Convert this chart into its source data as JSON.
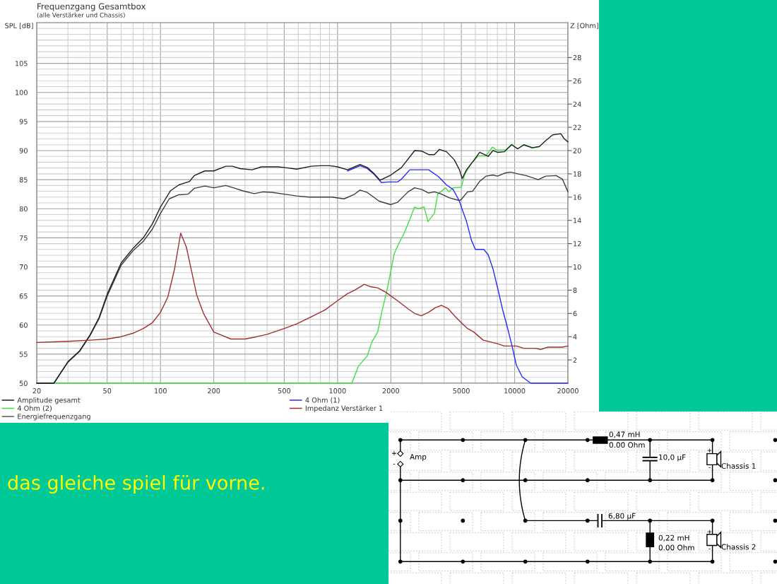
{
  "chart_data": [
    {
      "type": "line",
      "title": "Frequenzgang Gesamtbox",
      "subtitle": "(alle Verstärker und Chassis)",
      "ylabel": "SPL [dB]",
      "y2label": "Z [Ohm]",
      "annotations": [
        "das gleiche spiel für vorne."
      ],
      "log": "x",
      "xlim": [
        20,
        20000
      ],
      "xticks": [
        20,
        50,
        100,
        200,
        500,
        1000,
        2000,
        5000,
        10000,
        20000
      ],
      "ylim": [
        50,
        112
      ],
      "yticks": [
        50,
        55,
        60,
        65,
        70,
        75,
        80,
        85,
        90,
        95,
        100,
        105
      ],
      "y2lim": [
        0,
        31
      ],
      "y2ticks": [
        2,
        4,
        6,
        8,
        10,
        12,
        14,
        16,
        18,
        20,
        22,
        24,
        26,
        28
      ],
      "grid": true,
      "legend": "bottom",
      "series": [
        {
          "name": "Amplitude gesamt",
          "color": "#1e1e1e",
          "x": [
            20,
            25,
            30,
            35,
            40,
            45,
            50,
            60,
            70,
            80,
            90,
            100,
            114,
            127,
            146,
            155,
            178,
            200,
            234,
            255,
            282,
            329,
            372,
            460,
            500,
            588,
            710,
            798,
            904,
            1000,
            1138,
            1340,
            1472,
            1612,
            1738,
            2000,
            2298,
            2724,
            3000,
            3270,
            3520,
            3761,
            4125,
            4568,
            4880,
            5060,
            5350,
            5780,
            6350,
            7090,
            7540,
            8000,
            8750,
            9620,
            10400,
            11270,
            12600,
            13800,
            14970,
            16400,
            18250,
            19100,
            20000
          ],
          "values": [
            50,
            50,
            53.7,
            55.6,
            58.3,
            61.3,
            65.3,
            70.7,
            73.2,
            75.0,
            77.4,
            80.3,
            83.1,
            84.1,
            84.7,
            85.7,
            86.5,
            86.5,
            87.3,
            87.3,
            86.9,
            86.7,
            87.2,
            87.2,
            87.1,
            86.8,
            87.3,
            87.4,
            87.4,
            87.2,
            86.7,
            87.6,
            87.1,
            86.0,
            84.9,
            85.8,
            87.1,
            90.0,
            89.9,
            89.3,
            89.3,
            90.2,
            89.8,
            88.4,
            86.7,
            85.2,
            86.7,
            88.0,
            89.7,
            89.0,
            90.0,
            89.7,
            89.8,
            91.0,
            90.3,
            91.0,
            90.5,
            90.7,
            91.7,
            92.7,
            92.9,
            92.0,
            91.5
          ]
        },
        {
          "name": "4 Ohm (2)",
          "color": "#40e040",
          "x": [
            20,
            1204,
            1310,
            1472,
            1564,
            1685,
            1770,
            1905,
            2000,
            2090,
            2250,
            2380,
            2560,
            2724,
            2850,
            3080,
            3240,
            3520,
            3680,
            4080,
            4260,
            4500,
            5000,
            5230,
            5700,
            6250,
            6880,
            7500,
            7890,
            8900,
            9620,
            10400,
            11270,
            12600,
            13800
          ],
          "values": [
            50,
            50,
            52.9,
            54.7,
            57.1,
            58.8,
            62.0,
            66.1,
            69.3,
            72.3,
            74.4,
            75.8,
            78.2,
            80.3,
            80.0,
            80.3,
            77.8,
            79.2,
            82.5,
            83.6,
            82.9,
            83.6,
            83.7,
            85.9,
            87.8,
            89.1,
            89.1,
            90.6,
            90.1,
            90.1,
            91.1,
            90.3,
            91.0,
            90.4,
            90.7
          ]
        },
        {
          "name": "Energiefrequenzgang",
          "color": "#3c3c3c",
          "x": [
            20,
            25,
            30,
            35,
            40,
            45,
            50,
            60,
            70,
            80,
            90,
            100,
            112,
            127,
            143,
            155,
            178,
            200,
            234,
            264,
            290,
            338,
            381,
            432,
            500,
            588,
            690,
            798,
            930,
            1088,
            1233,
            1340,
            1472,
            1716,
            2000,
            2180,
            2500,
            2724,
            3000,
            3270,
            3520,
            3810,
            4260,
            4880,
            5000,
            5420,
            5780,
            6350,
            6880,
            7540,
            8000,
            8750,
            9480,
            10400,
            11630,
            13600,
            14970,
            17190,
            18620,
            20000
          ],
          "values": [
            50,
            50,
            53.6,
            55.5,
            58.2,
            61.1,
            65.0,
            70.3,
            72.8,
            74.4,
            76.5,
            79.2,
            81.7,
            82.4,
            82.5,
            83.5,
            83.9,
            83.6,
            84.0,
            83.5,
            83.1,
            82.6,
            82.9,
            82.8,
            82.5,
            82.2,
            82.0,
            82.0,
            82.0,
            81.7,
            82.4,
            83.2,
            82.8,
            81.3,
            80.7,
            81.1,
            82.9,
            83.6,
            83.3,
            82.7,
            82.9,
            82.6,
            81.9,
            81.4,
            81.6,
            82.9,
            83.0,
            84.7,
            85.6,
            85.8,
            85.6,
            86.1,
            86.3,
            86.0,
            85.7,
            85.0,
            85.6,
            85.7,
            85.1,
            82.9
          ]
        },
        {
          "name": "4 Ohm (1)",
          "color": "#2828ff",
          "x": [
            1138,
            1340,
            1472,
            1612,
            1770,
            1935,
            2180,
            2298,
            2560,
            3000,
            3270,
            3720,
            4125,
            4500,
            4880,
            5000,
            5350,
            5700,
            6000,
            6700,
            7090,
            7540,
            8000,
            8530,
            9100,
            9620,
            10230,
            11040,
            12330,
            20000
          ],
          "values": [
            86.5,
            87.4,
            86.9,
            85.9,
            84.5,
            84.6,
            84.6,
            85.1,
            86.7,
            86.7,
            86.7,
            85.5,
            84.1,
            83.3,
            81.3,
            80.3,
            77.8,
            74.6,
            73.0,
            73.0,
            72.1,
            69.7,
            66.5,
            62.8,
            59.6,
            56.7,
            53.1,
            51.1,
            50,
            50
          ]
        },
        {
          "name": "Impedanz Verstärker 1",
          "color": "#a03030",
          "axis": "y2",
          "x": [
            20,
            30,
            40,
            50,
            60,
            70,
            80,
            90,
            100,
            110,
            120,
            130,
            140,
            150,
            160,
            175,
            200,
            250,
            300,
            350,
            400,
            500,
            588,
            710,
            850,
            1000,
            1138,
            1250,
            1415,
            1530,
            1685,
            1880,
            2000,
            2180,
            2500,
            2724,
            2970,
            3270,
            3570,
            3860,
            4220,
            4568,
            5000,
            5420,
            5880,
            6650,
            8000,
            8750,
            10230,
            11270,
            13160,
            14000,
            15410,
            18620,
            20000
          ],
          "values": [
            3.5,
            3.6,
            3.7,
            3.8,
            4.0,
            4.3,
            4.7,
            5.2,
            6.1,
            7.4,
            9.8,
            12.9,
            11.7,
            9.6,
            7.6,
            6.0,
            4.4,
            3.8,
            3.8,
            4.0,
            4.2,
            4.7,
            5.1,
            5.7,
            6.3,
            7.1,
            7.7,
            8.0,
            8.5,
            8.3,
            8.2,
            7.8,
            7.5,
            7.1,
            6.4,
            6.0,
            5.8,
            6.1,
            6.5,
            6.7,
            6.4,
            5.8,
            5.2,
            4.7,
            4.4,
            3.7,
            3.4,
            3.2,
            3.2,
            3.0,
            3.0,
            2.9,
            3.1,
            3.1,
            3.2
          ]
        }
      ]
    },
    {
      "type": "other",
      "annotations": [
        "+",
        "-",
        "Amp",
        "0,47 mH",
        "0.00 Ohm",
        "10,0 µF",
        "+",
        "-",
        "Chassis 1",
        "6,80 µF",
        "0,22 mH",
        "0.00 Ohm",
        "+",
        "-",
        "Chassis 2"
      ]
    }
  ]
}
